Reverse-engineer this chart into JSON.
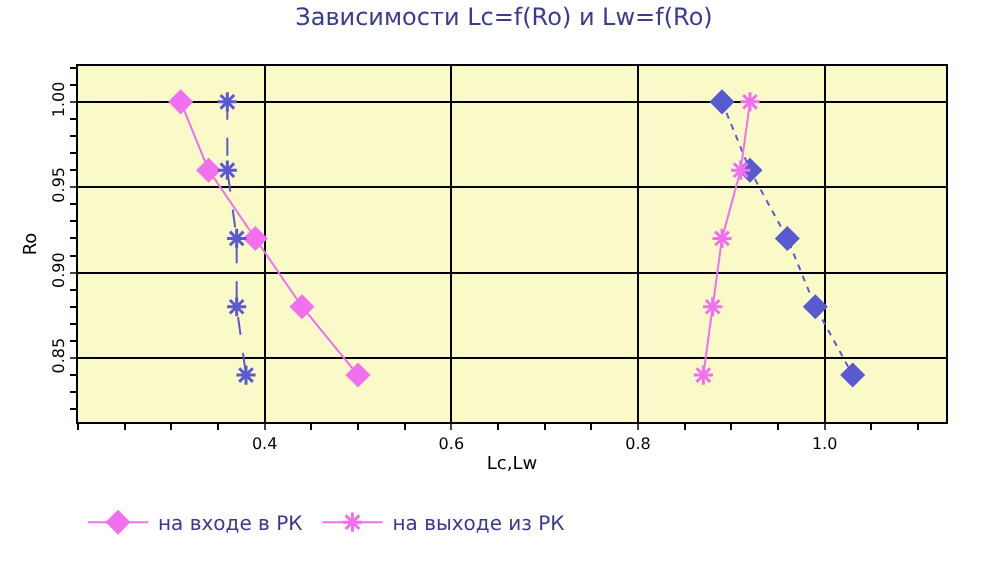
{
  "chart_data": {
    "type": "line",
    "title": "Зависимости Lc=f(Ro) и Lw=f(Ro)",
    "xlabel": "Lc,Lw",
    "ylabel": "Ro",
    "xlim": [
      0.2,
      1.13
    ],
    "xticks": [
      0.4,
      0.6,
      0.8,
      {
        "value": 1.0,
        "label": "1.0"
      }
    ],
    "ylim": [
      0.8125,
      1.021
    ],
    "yticks": [
      {
        "value": 0.85,
        "label": "0.85"
      },
      {
        "value": 0.9,
        "label": "0.90"
      },
      {
        "value": 0.95,
        "label": "0.95"
      },
      {
        "value": 1.0,
        "label": "1.00"
      }
    ],
    "grid": true,
    "legend": "bottom",
    "series": [
      {
        "color": "#5a5ad0",
        "marker": "diamond",
        "line_style": "dotted",
        "x": [
          0.89,
          0.92,
          0.96,
          0.99,
          1.03
        ],
        "values": [
          1.0,
          0.96,
          0.92,
          0.88,
          0.84
        ]
      },
      {
        "name": "на входе в РК",
        "color": "#f070f0",
        "marker": "diamond",
        "line_style": "solid",
        "x": [
          0.31,
          0.34,
          0.39,
          0.44,
          0.5
        ],
        "values": [
          1.0,
          0.96,
          0.92,
          0.88,
          0.84
        ]
      },
      {
        "color": "#5a5ad0",
        "marker": "cross",
        "line_style": "dashed",
        "x": [
          0.36,
          0.36,
          0.37,
          0.37,
          0.38
        ],
        "values": [
          1.0,
          0.96,
          0.92,
          0.88,
          0.84
        ]
      },
      {
        "name": "на выходе из РК",
        "color": "#f070f0",
        "marker": "cross",
        "line_style": "solid",
        "x": [
          0.92,
          0.91,
          0.89,
          0.88,
          0.87
        ],
        "values": [
          1.0,
          0.96,
          0.92,
          0.88,
          0.84
        ]
      }
    ]
  }
}
